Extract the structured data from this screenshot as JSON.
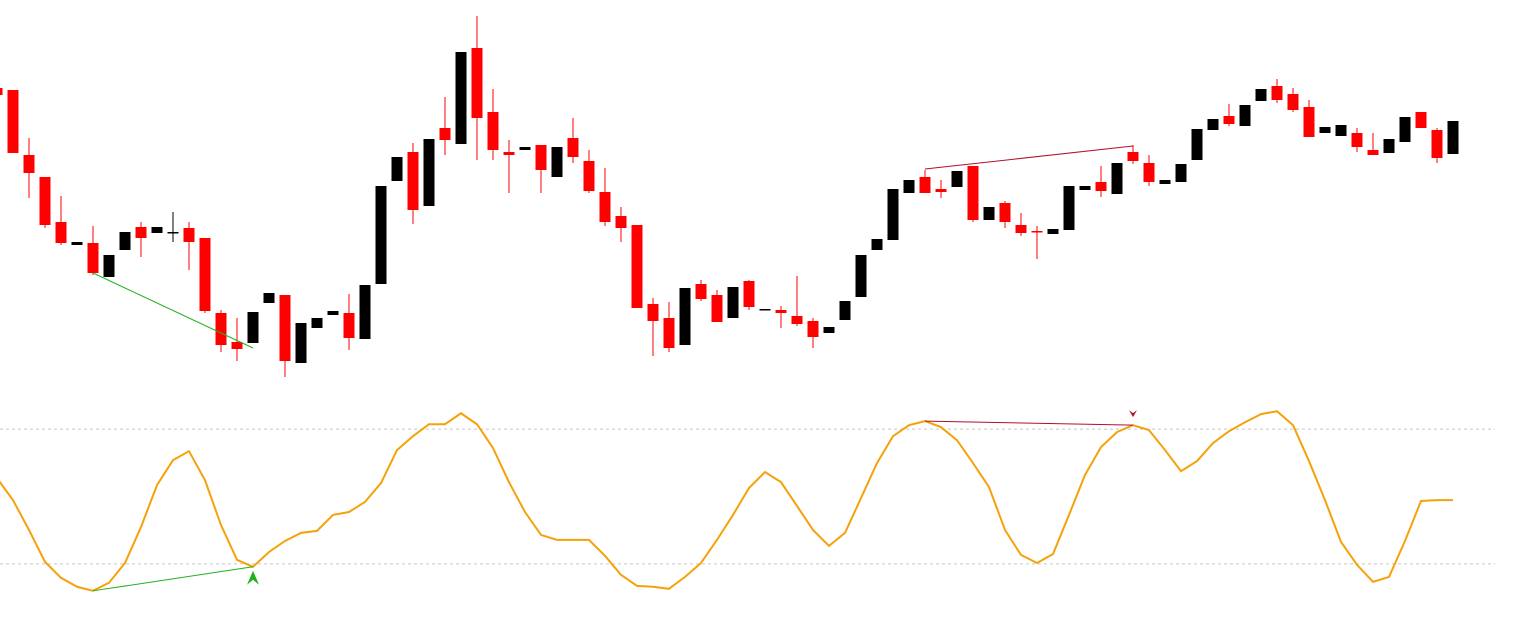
{
  "chart_data": [
    {
      "type": "candlestick",
      "up_color": "#000000",
      "down_color": "#ff0000",
      "ylim": [
        0,
        628
      ],
      "open": [
        540,
        538,
        473,
        451,
        406,
        383,
        385,
        351,
        378,
        401,
        395,
        396,
        400,
        390,
        315,
        286,
        285,
        325,
        333,
        265,
        300,
        313,
        315,
        289,
        344,
        447,
        476,
        422,
        500,
        484,
        580,
        516,
        476,
        478,
        483,
        451,
        490,
        467,
        436,
        412,
        403,
        324,
        310,
        283,
        344,
        333,
        310,
        347,
        318,
        318,
        312,
        307,
        295,
        308,
        331,
        378,
        388,
        435,
        451,
        439,
        441,
        462,
        408,
        425,
        403,
        397,
        394,
        398,
        438,
        446,
        434,
        476,
        465,
        444,
        446,
        468,
        498,
        512,
        502,
        527,
        542,
        534,
        521,
        495,
        492,
        495,
        478,
        475,
        486,
        516,
        498,
        474
      ],
      "high": [
        540,
        538,
        490,
        451,
        432,
        386,
        402,
        373,
        396,
        406,
        401,
        416,
        406,
        390,
        318,
        310,
        316,
        335,
        333,
        305,
        310,
        317,
        334,
        343,
        442,
        471,
        485,
        489,
        531,
        576,
        612,
        539,
        488,
        481,
        483,
        481,
        510,
        478,
        460,
        421,
        403,
        330,
        326,
        340,
        348,
        338,
        341,
        348,
        319,
        322,
        352,
        310,
        301,
        327,
        373,
        389,
        439,
        448,
        458,
        448,
        457,
        462,
        421,
        427,
        415,
        402,
        399,
        442,
        442,
        462,
        465,
        483,
        473,
        448,
        464,
        499,
        509,
        524,
        523,
        539,
        549,
        540,
        528,
        501,
        503,
        500,
        495,
        489,
        511,
        516,
        500,
        507
      ],
      "low": [
        533,
        475,
        430,
        400,
        383,
        383,
        353,
        351,
        378,
        371,
        395,
        386,
        358,
        315,
        276,
        267,
        285,
        325,
        251,
        265,
        300,
        313,
        278,
        289,
        344,
        447,
        404,
        422,
        473,
        484,
        468,
        468,
        435,
        478,
        435,
        451,
        465,
        435,
        402,
        386,
        320,
        272,
        276,
        283,
        327,
        306,
        310,
        318,
        318,
        300,
        302,
        280,
        295,
        308,
        331,
        378,
        388,
        435,
        435,
        430,
        441,
        406,
        408,
        400,
        392,
        369,
        394,
        398,
        438,
        431,
        434,
        464,
        442,
        444,
        446,
        468,
        498,
        502,
        502,
        527,
        525,
        516,
        491,
        495,
        492,
        476,
        473,
        475,
        486,
        500,
        465,
        474
      ],
      "close": [
        533,
        475,
        455,
        403,
        385,
        386,
        355,
        373,
        396,
        390,
        401,
        396,
        386,
        317,
        283,
        279,
        316,
        335,
        267,
        305,
        310,
        317,
        290,
        343,
        442,
        471,
        418,
        489,
        488,
        576,
        510,
        478,
        473,
        481,
        458,
        481,
        471,
        437,
        406,
        400,
        320,
        307,
        280,
        340,
        329,
        306,
        341,
        321,
        319,
        315,
        304,
        291,
        301,
        327,
        373,
        389,
        439,
        448,
        435,
        436,
        457,
        408,
        421,
        406,
        395,
        396,
        399,
        442,
        442,
        437,
        465,
        467,
        446,
        448,
        464,
        499,
        509,
        504,
        523,
        539,
        528,
        518,
        491,
        501,
        503,
        481,
        473,
        489,
        511,
        500,
        470,
        507
      ],
      "lines": [
        {
          "color": "#22b022",
          "x": [
            6,
            16
          ],
          "values": [
            355,
            280
          ]
        },
        {
          "color": "#b01030",
          "x": [
            58,
            71
          ],
          "values": [
            459,
            482
          ]
        }
      ]
    },
    {
      "type": "line",
      "color": "#f5a20a",
      "ylim": [
        -5,
        93
      ],
      "levels": [
        20,
        80
      ],
      "level_color": "#c8c8c8",
      "values": [
        58.2,
        48.4,
        35.1,
        20.9,
        13.8,
        9.8,
        8,
        11.6,
        20.4,
        36.4,
        55.1,
        66.2,
        70.2,
        57.3,
        37.3,
        21.8,
        18.7,
        25.3,
        30.2,
        33.8,
        34.7,
        41.8,
        43.1,
        47.6,
        56,
        70.7,
        76.9,
        82.2,
        82.2,
        87.1,
        82.2,
        71.6,
        56.4,
        43.1,
        32.9,
        30.7,
        30.7,
        30.7,
        23.6,
        15.1,
        10.2,
        9.8,
        8.9,
        14.2,
        20.4,
        30.7,
        41.8,
        53.8,
        60.9,
        56.4,
        45.8,
        35.1,
        28,
        33.8,
        49.3,
        64.9,
        76.9,
        81.8,
        83.6,
        80.9,
        75.1,
        64.9,
        54.2,
        35.1,
        24,
        20.4,
        24.4,
        41.8,
        59.6,
        72,
        78.7,
        81.8,
        79.6,
        70.7,
        61.3,
        65.8,
        73.8,
        79.1,
        83.1,
        86.7,
        88,
        81.8,
        65.8,
        48.4,
        29.8,
        19.6,
        12,
        14.2,
        30.2,
        48,
        48.4,
        48.4
      ],
      "lines": [
        {
          "color": "#22b022",
          "x": [
            6,
            16
          ],
          "values": [
            8,
            18.7
          ]
        },
        {
          "color": "#b01030",
          "x": [
            58,
            71
          ],
          "values": [
            83.6,
            81.8
          ]
        }
      ]
    }
  ]
}
